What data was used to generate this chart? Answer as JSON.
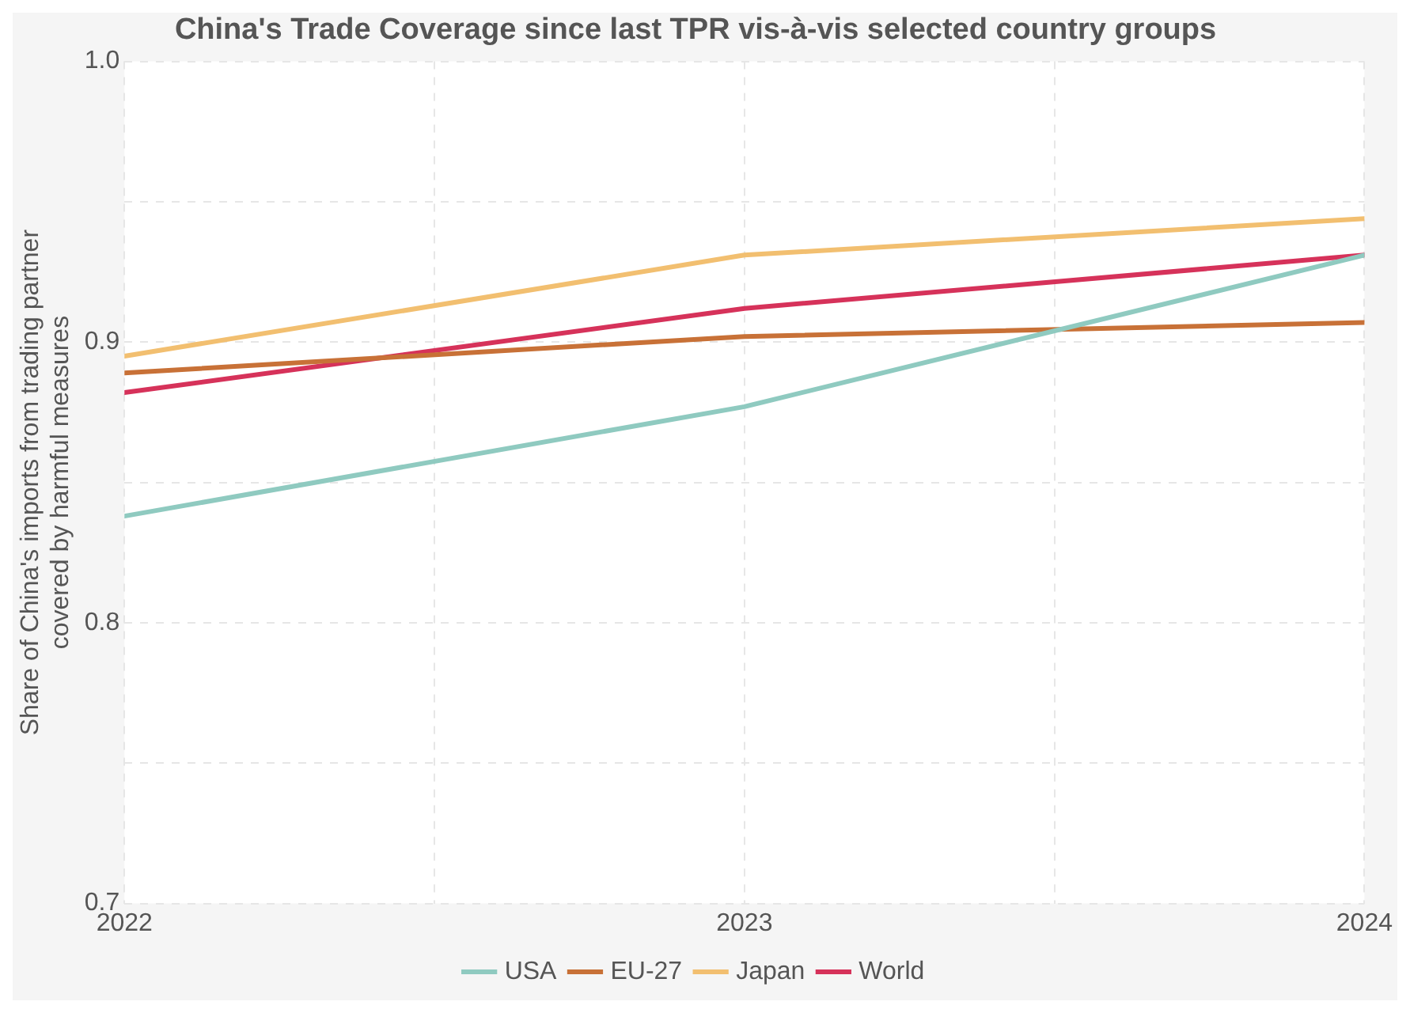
{
  "chart_data": {
    "type": "line",
    "title": "China's Trade Coverage since last TPR vis-à-vis selected country groups",
    "ylabel": "Share of China's imports from trading partner\ncovered by harmful measures",
    "x": [
      2022,
      2023,
      2024
    ],
    "xlim": [
      2022,
      2024
    ],
    "xticks": [
      2022,
      {
        "value": 2022.5,
        "label": null
      },
      2023,
      {
        "value": 2023.5,
        "label": null
      },
      2024
    ],
    "ylim": [
      0.7,
      1.0
    ],
    "yticks": [
      {
        "value": 0.7,
        "label": "0.7"
      },
      {
        "value": 0.75,
        "label": null
      },
      {
        "value": 0.8,
        "label": "0.8"
      },
      {
        "value": 0.85,
        "label": null
      },
      {
        "value": 0.9,
        "label": "0.9"
      },
      {
        "value": 0.95,
        "label": null
      },
      {
        "value": 1.0,
        "label": "1.0"
      }
    ],
    "grid": true,
    "legend": "bottom",
    "marker": "none",
    "line_style": "solid",
    "series": [
      {
        "name": "USA",
        "color": "#8fcac0",
        "values": [
          0.838,
          0.877,
          0.931
        ]
      },
      {
        "name": "EU-27",
        "color": "#c87137",
        "values": [
          0.889,
          0.902,
          0.907
        ]
      },
      {
        "name": "Japan",
        "color": "#f2bf70",
        "values": [
          0.895,
          0.931,
          0.944
        ]
      },
      {
        "name": "World",
        "color": "#d6325a",
        "values": [
          0.882,
          0.912,
          0.931
        ]
      }
    ]
  }
}
